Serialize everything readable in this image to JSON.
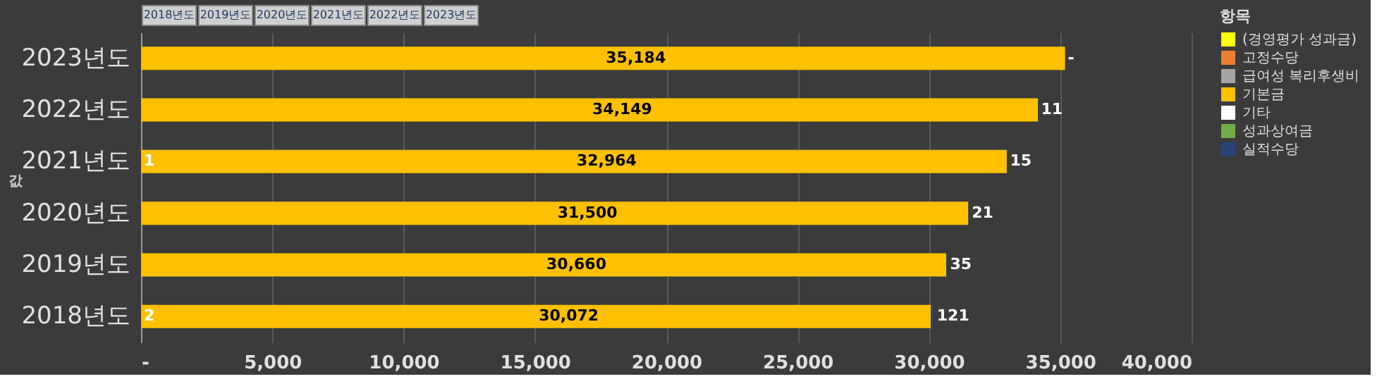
{
  "chart_data": {
    "type": "bar",
    "orientation": "horizontal",
    "stacked": true,
    "categories": [
      "2023년도",
      "2022년도",
      "2021년도",
      "2020년도",
      "2019년도",
      "2018년도"
    ],
    "series": [
      {
        "name": "(경영평가 성과금)",
        "color": "#ffff00",
        "values": [
          0,
          0,
          1,
          0,
          0,
          2
        ],
        "value_labels": [
          null,
          null,
          "1",
          null,
          null,
          "2"
        ]
      },
      {
        "name": "고정수당",
        "color": "#ed7d31",
        "values": [
          null,
          null,
          null,
          null,
          null,
          null
        ]
      },
      {
        "name": "급여성 복리후생비",
        "color": "#a5a5a5",
        "values": [
          null,
          null,
          null,
          null,
          null,
          null
        ]
      },
      {
        "name": "기본금",
        "color": "#ffc000",
        "values": [
          35184,
          34149,
          32964,
          31500,
          30660,
          30072
        ],
        "value_labels": [
          "35,184",
          "34,149",
          "32,964",
          "31,500",
          "30,660",
          "30,072"
        ]
      },
      {
        "name": "기타",
        "color": "#ffffff",
        "values": [
          null,
          null,
          null,
          null,
          null,
          null
        ]
      },
      {
        "name": "성과상여금",
        "color": "#70ad47",
        "values": [
          null,
          null,
          null,
          null,
          null,
          null
        ]
      },
      {
        "name": "실적수당",
        "color": "#264478",
        "values": [
          0,
          11,
          15,
          21,
          35,
          121
        ],
        "value_labels": [
          "-",
          "11",
          "15",
          "21",
          "35",
          "121"
        ]
      }
    ],
    "xlim": [
      0,
      40000
    ],
    "xticks": [
      {
        "value": 0,
        "label": "-"
      },
      {
        "value": 5000,
        "label": "5,000"
      },
      {
        "value": 10000,
        "label": "10,000"
      },
      {
        "value": 15000,
        "label": "15,000"
      },
      {
        "value": 20000,
        "label": "20,000"
      },
      {
        "value": 25000,
        "label": "25,000"
      },
      {
        "value": 30000,
        "label": "30,000"
      },
      {
        "value": 35000,
        "label": "35,000"
      },
      {
        "value": 40000,
        "label": "40,000"
      }
    ],
    "ylabel": "값",
    "legend_title": "항목",
    "legend": "right",
    "grid": "x",
    "annotations": [
      "2018년도",
      "2019년도",
      "2020년도",
      "2021년도",
      "2022년도",
      "2023년도"
    ]
  }
}
